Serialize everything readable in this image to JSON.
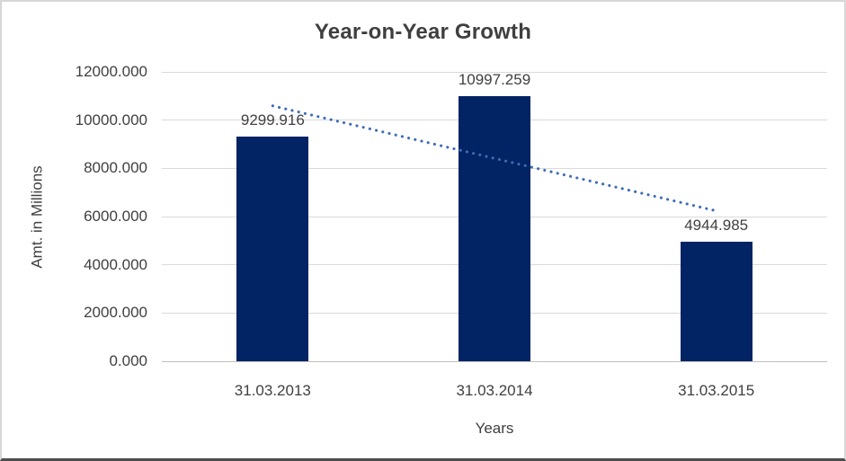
{
  "chart_data": {
    "type": "bar",
    "title": "Year-on-Year Growth",
    "xlabel": "Years",
    "ylabel": "Amt. in Millions",
    "categories": [
      "31.03.2013",
      "31.03.2014",
      "31.03.2015"
    ],
    "values": [
      9299.916,
      10997.259,
      4944.985
    ],
    "data_labels": [
      "9299.916",
      "10997.259",
      "4944.985"
    ],
    "ylim": [
      0,
      12000
    ],
    "ytick_values": [
      0,
      2000,
      4000,
      6000,
      8000,
      10000,
      12000
    ],
    "ytick_labels": [
      "0.000",
      "2000.000",
      "4000.000",
      "6000.000",
      "8000.000",
      "10000.000",
      "12000.000"
    ],
    "grid": true,
    "legend": "none",
    "trendline": {
      "type": "linear",
      "style": "dotted"
    },
    "colors": {
      "bar": "#022364",
      "trendline": "#3E6CB5",
      "gridline": "#D9D9D9",
      "axis_line": "#BFBFBF",
      "text": "#404040",
      "title_text": "#3F3F3F",
      "background": "#FFFFFF"
    }
  }
}
